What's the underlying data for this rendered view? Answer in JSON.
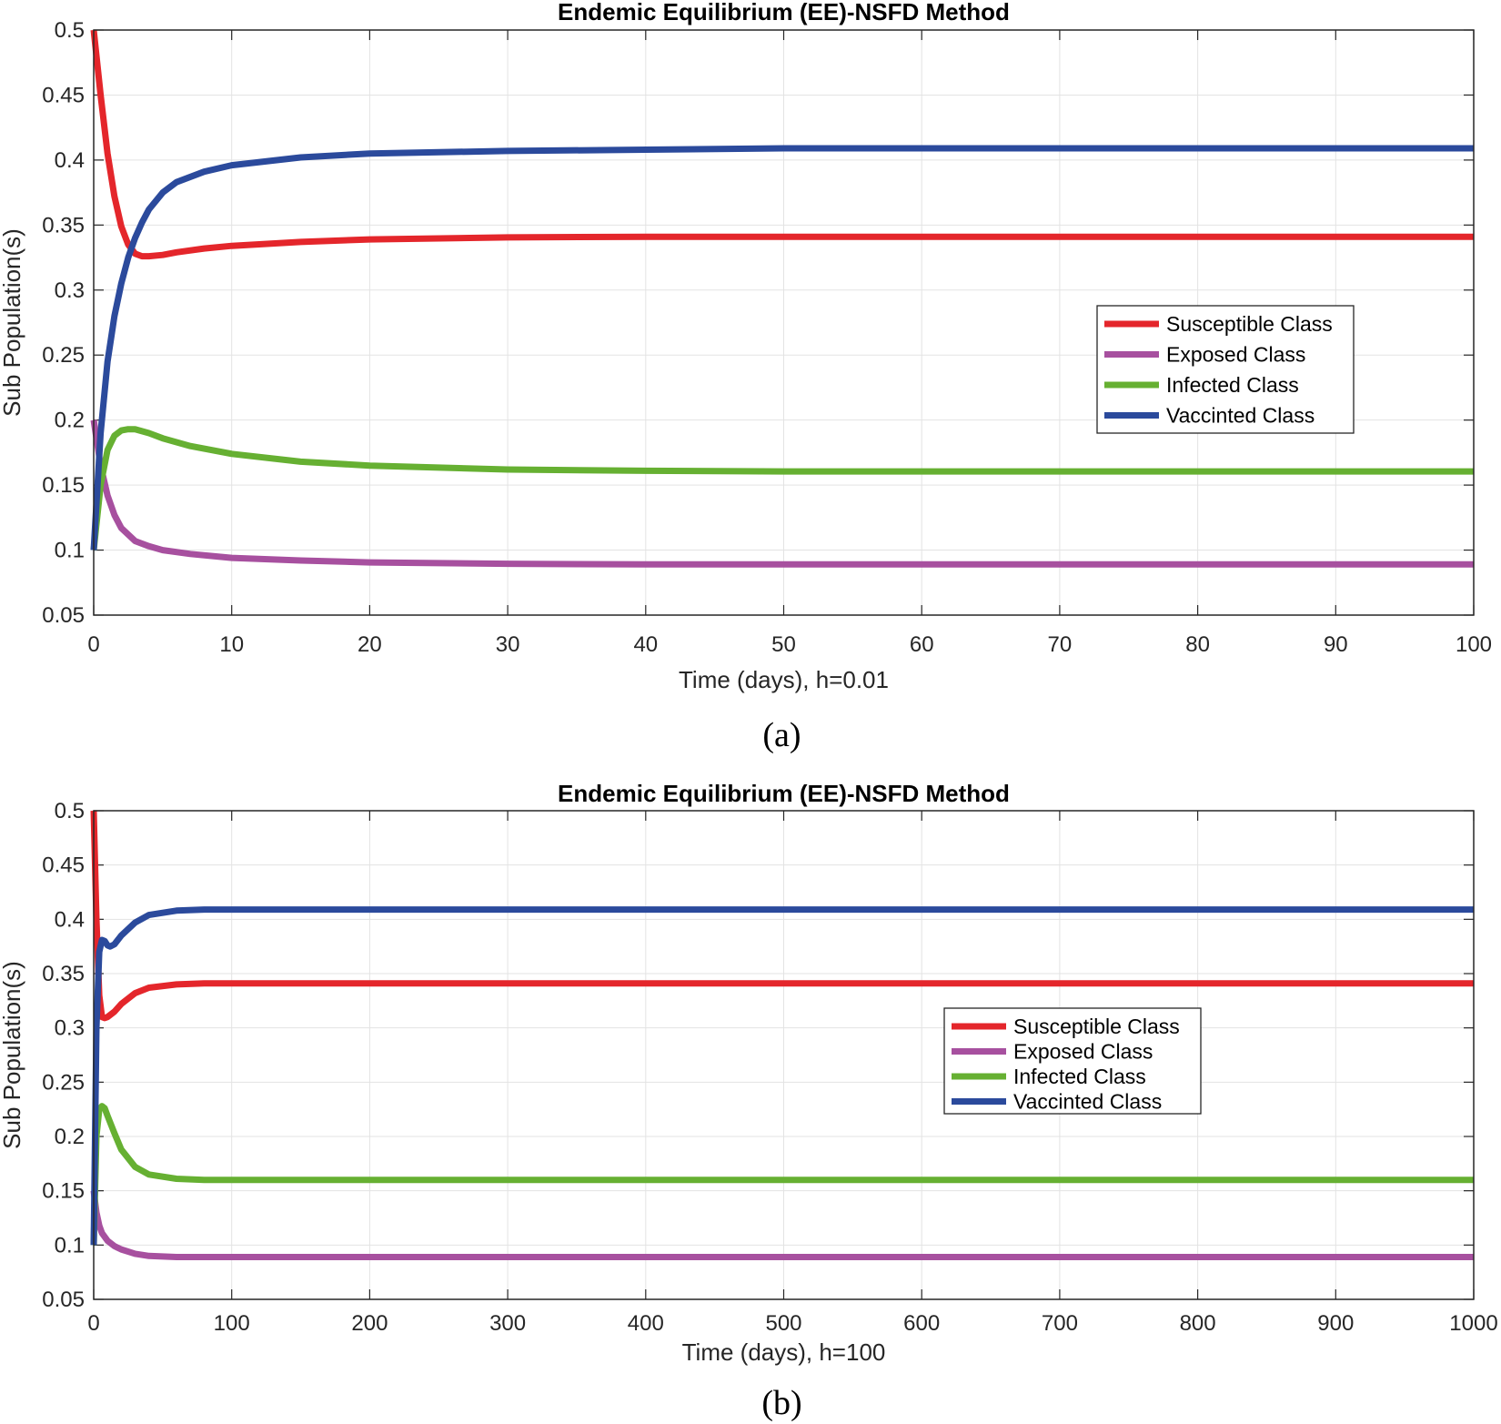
{
  "colors": {
    "susceptible": "#e4262b",
    "exposed": "#a7509f",
    "infected": "#66b032",
    "vaccinated": "#2b4a9c"
  },
  "chart_data": [
    {
      "type": "line",
      "caption": "(a)",
      "title": "Endemic Equilibrium (EE)-NSFD Method",
      "xlabel": "Time (days), h=0.01",
      "ylabel": "Sub Population(s)",
      "xlim": [
        0,
        100
      ],
      "ylim": [
        0.05,
        0.5
      ],
      "xticks": [
        0,
        10,
        20,
        30,
        40,
        50,
        60,
        70,
        80,
        90,
        100
      ],
      "xtick_labels": [
        "0",
        "10",
        "20",
        "30",
        "40",
        "50",
        "60",
        "70",
        "80",
        "90",
        "100"
      ],
      "yticks": [
        0.05,
        0.1,
        0.15,
        0.2,
        0.25,
        0.3,
        0.35,
        0.4,
        0.45,
        0.5
      ],
      "ytick_labels": [
        "0.05",
        "0.1",
        "0.15",
        "0.2",
        "0.25",
        "0.3",
        "0.35",
        "0.4",
        "0.45",
        "0.5"
      ],
      "grid": true,
      "legend_position": "center-right",
      "series": [
        {
          "name": "Susceptible Class",
          "color_key": "susceptible",
          "x": [
            0,
            0.5,
            1,
            1.5,
            2,
            2.5,
            3,
            3.5,
            4,
            5,
            6,
            8,
            10,
            15,
            20,
            30,
            40,
            50,
            60,
            70,
            80,
            90,
            100
          ],
          "y": [
            0.5,
            0.45,
            0.405,
            0.372,
            0.349,
            0.335,
            0.328,
            0.326,
            0.326,
            0.327,
            0.329,
            0.332,
            0.334,
            0.337,
            0.339,
            0.3405,
            0.341,
            0.341,
            0.341,
            0.341,
            0.341,
            0.341,
            0.341
          ]
        },
        {
          "name": "Exposed Class",
          "color_key": "exposed",
          "x": [
            0,
            0.5,
            1,
            1.5,
            2,
            3,
            4,
            5,
            7,
            10,
            15,
            20,
            30,
            40,
            50,
            60,
            70,
            80,
            90,
            100
          ],
          "y": [
            0.2,
            0.165,
            0.142,
            0.127,
            0.117,
            0.107,
            0.103,
            0.1,
            0.097,
            0.094,
            0.092,
            0.0905,
            0.0895,
            0.089,
            0.089,
            0.089,
            0.089,
            0.089,
            0.089,
            0.089
          ]
        },
        {
          "name": "Infected Class",
          "color_key": "infected",
          "x": [
            0,
            0.5,
            1,
            1.5,
            2,
            2.5,
            3,
            4,
            5,
            7,
            10,
            15,
            20,
            30,
            40,
            50,
            60,
            70,
            80,
            90,
            100
          ],
          "y": [
            0.1,
            0.15,
            0.177,
            0.188,
            0.192,
            0.193,
            0.193,
            0.19,
            0.186,
            0.18,
            0.174,
            0.168,
            0.165,
            0.162,
            0.161,
            0.1605,
            0.1605,
            0.1605,
            0.1605,
            0.1605,
            0.1605
          ]
        },
        {
          "name": "Vaccinted Class",
          "color_key": "vaccinated",
          "x": [
            0,
            0.5,
            1,
            1.5,
            2,
            2.5,
            3,
            3.5,
            4,
            5,
            6,
            8,
            10,
            15,
            20,
            30,
            40,
            50,
            60,
            70,
            80,
            90,
            100
          ],
          "y": [
            0.1,
            0.19,
            0.245,
            0.28,
            0.305,
            0.325,
            0.34,
            0.352,
            0.362,
            0.375,
            0.383,
            0.391,
            0.396,
            0.402,
            0.405,
            0.407,
            0.408,
            0.409,
            0.409,
            0.409,
            0.409,
            0.409,
            0.409
          ]
        }
      ]
    },
    {
      "type": "line",
      "caption": "(b)",
      "title": "Endemic Equilibrium (EE)-NSFD Method",
      "xlabel": "Time (days), h=100",
      "ylabel": "Sub Population(s)",
      "xlim": [
        0,
        1000
      ],
      "ylim": [
        0.05,
        0.5
      ],
      "xticks": [
        0,
        100,
        200,
        300,
        400,
        500,
        600,
        700,
        800,
        900,
        1000
      ],
      "xtick_labels": [
        "0",
        "100",
        "200",
        "300",
        "400",
        "500",
        "600",
        "700",
        "800",
        "900",
        "1000"
      ],
      "yticks": [
        0.05,
        0.1,
        0.15,
        0.2,
        0.25,
        0.3,
        0.35,
        0.4,
        0.45,
        0.5
      ],
      "ytick_labels": [
        "0.05",
        "0.1",
        "0.15",
        "0.2",
        "0.25",
        "0.3",
        "0.35",
        "0.4",
        "0.45",
        "0.5"
      ],
      "grid": true,
      "legend_position": "center-right",
      "series": [
        {
          "name": "Susceptible Class",
          "color_key": "susceptible",
          "x": [
            0,
            2,
            4,
            6,
            8,
            10,
            15,
            20,
            30,
            40,
            60,
            80,
            100,
            200,
            400,
            600,
            800,
            1000
          ],
          "y": [
            0.5,
            0.4,
            0.33,
            0.31,
            0.309,
            0.31,
            0.315,
            0.322,
            0.332,
            0.337,
            0.34,
            0.341,
            0.341,
            0.341,
            0.341,
            0.341,
            0.341,
            0.341
          ]
        },
        {
          "name": "Exposed Class",
          "color_key": "exposed",
          "x": [
            0,
            2,
            4,
            6,
            10,
            15,
            20,
            30,
            40,
            60,
            80,
            100,
            200,
            400,
            600,
            800,
            1000
          ],
          "y": [
            0.15,
            0.13,
            0.118,
            0.111,
            0.104,
            0.099,
            0.096,
            0.092,
            0.09,
            0.089,
            0.089,
            0.089,
            0.089,
            0.089,
            0.089,
            0.089,
            0.089
          ]
        },
        {
          "name": "Infected Class",
          "color_key": "infected",
          "x": [
            0,
            2,
            4,
            6,
            8,
            10,
            15,
            20,
            30,
            40,
            60,
            80,
            100,
            200,
            400,
            600,
            800,
            1000
          ],
          "y": [
            0.1,
            0.2,
            0.225,
            0.228,
            0.226,
            0.219,
            0.203,
            0.188,
            0.172,
            0.165,
            0.161,
            0.16,
            0.16,
            0.16,
            0.16,
            0.16,
            0.16,
            0.16
          ]
        },
        {
          "name": "Vaccinted Class",
          "color_key": "vaccinated",
          "x": [
            0,
            2,
            4,
            6,
            8,
            10,
            12,
            15,
            20,
            30,
            40,
            60,
            80,
            100,
            200,
            400,
            600,
            800,
            1000
          ],
          "y": [
            0.1,
            0.3,
            0.37,
            0.381,
            0.38,
            0.376,
            0.375,
            0.377,
            0.385,
            0.397,
            0.404,
            0.408,
            0.409,
            0.409,
            0.409,
            0.409,
            0.409,
            0.409,
            0.409
          ]
        }
      ]
    }
  ]
}
